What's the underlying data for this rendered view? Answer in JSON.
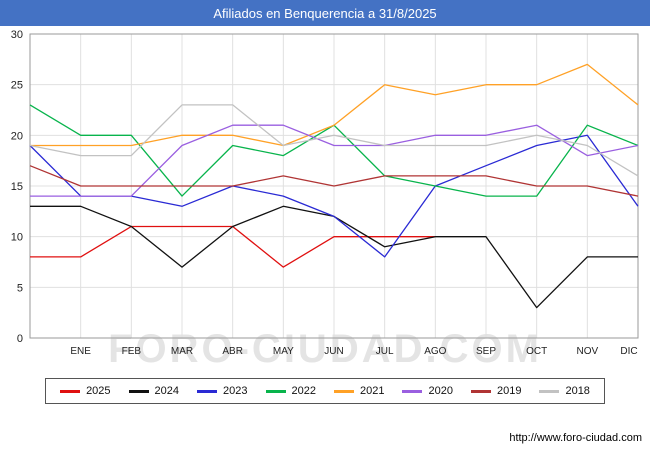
{
  "title": "Afiliados en Benquerencia a 31/8/2025",
  "watermark": "FORO-CIUDAD.COM",
  "footer": {
    "url_label": "http://www.foro-ciudad.com"
  },
  "colors": {
    "titlebar": "#4472c4",
    "grid": "#e0e0e0",
    "plot_border": "#9a9a9a",
    "tick_text": "#222222",
    "watermark": "#e4e4e4"
  },
  "chart_data": {
    "type": "line",
    "title": "Afiliados en Benquerencia a 31/8/2025",
    "xlabel": "",
    "ylabel": "",
    "ylim": [
      0,
      30
    ],
    "yticks": [
      0,
      5,
      10,
      15,
      20,
      25,
      30
    ],
    "grid": true,
    "legend_position": "bottom",
    "categories": [
      "",
      "ENE",
      "FEB",
      "MAR",
      "ABR",
      "MAY",
      "JUN",
      "JUL",
      "AGO",
      "SEP",
      "OCT",
      "NOV",
      "DIC"
    ],
    "series": [
      {
        "name": "2025",
        "color": "#e01010",
        "values": [
          8,
          8,
          11,
          11,
          11,
          7,
          10,
          10,
          10,
          null,
          null,
          null,
          null
        ]
      },
      {
        "name": "2024",
        "color": "#111111",
        "values": [
          13,
          13,
          11,
          7,
          11,
          13,
          12,
          9,
          10,
          10,
          3,
          8,
          8
        ]
      },
      {
        "name": "2023",
        "color": "#2a2ad4",
        "values": [
          19,
          14,
          14,
          13,
          15,
          14,
          12,
          8,
          15,
          17,
          19,
          20,
          13
        ]
      },
      {
        "name": "2022",
        "color": "#08b44c",
        "values": [
          23,
          20,
          20,
          14,
          19,
          18,
          21,
          16,
          15,
          14,
          14,
          21,
          19
        ]
      },
      {
        "name": "2021",
        "color": "#ffa126",
        "values": [
          19,
          19,
          19,
          20,
          20,
          19,
          21,
          25,
          24,
          25,
          25,
          27,
          23
        ]
      },
      {
        "name": "2020",
        "color": "#9a5fe0",
        "values": [
          14,
          14,
          14,
          19,
          21,
          21,
          19,
          19,
          20,
          20,
          21,
          18,
          19
        ]
      },
      {
        "name": "2019",
        "color": "#b03434",
        "values": [
          17,
          15,
          15,
          15,
          15,
          16,
          15,
          16,
          16,
          16,
          15,
          15,
          14
        ]
      },
      {
        "name": "2018",
        "color": "#c2c2c2",
        "values": [
          19,
          18,
          18,
          23,
          23,
          19,
          20,
          19,
          19,
          19,
          20,
          19,
          16
        ]
      }
    ]
  }
}
